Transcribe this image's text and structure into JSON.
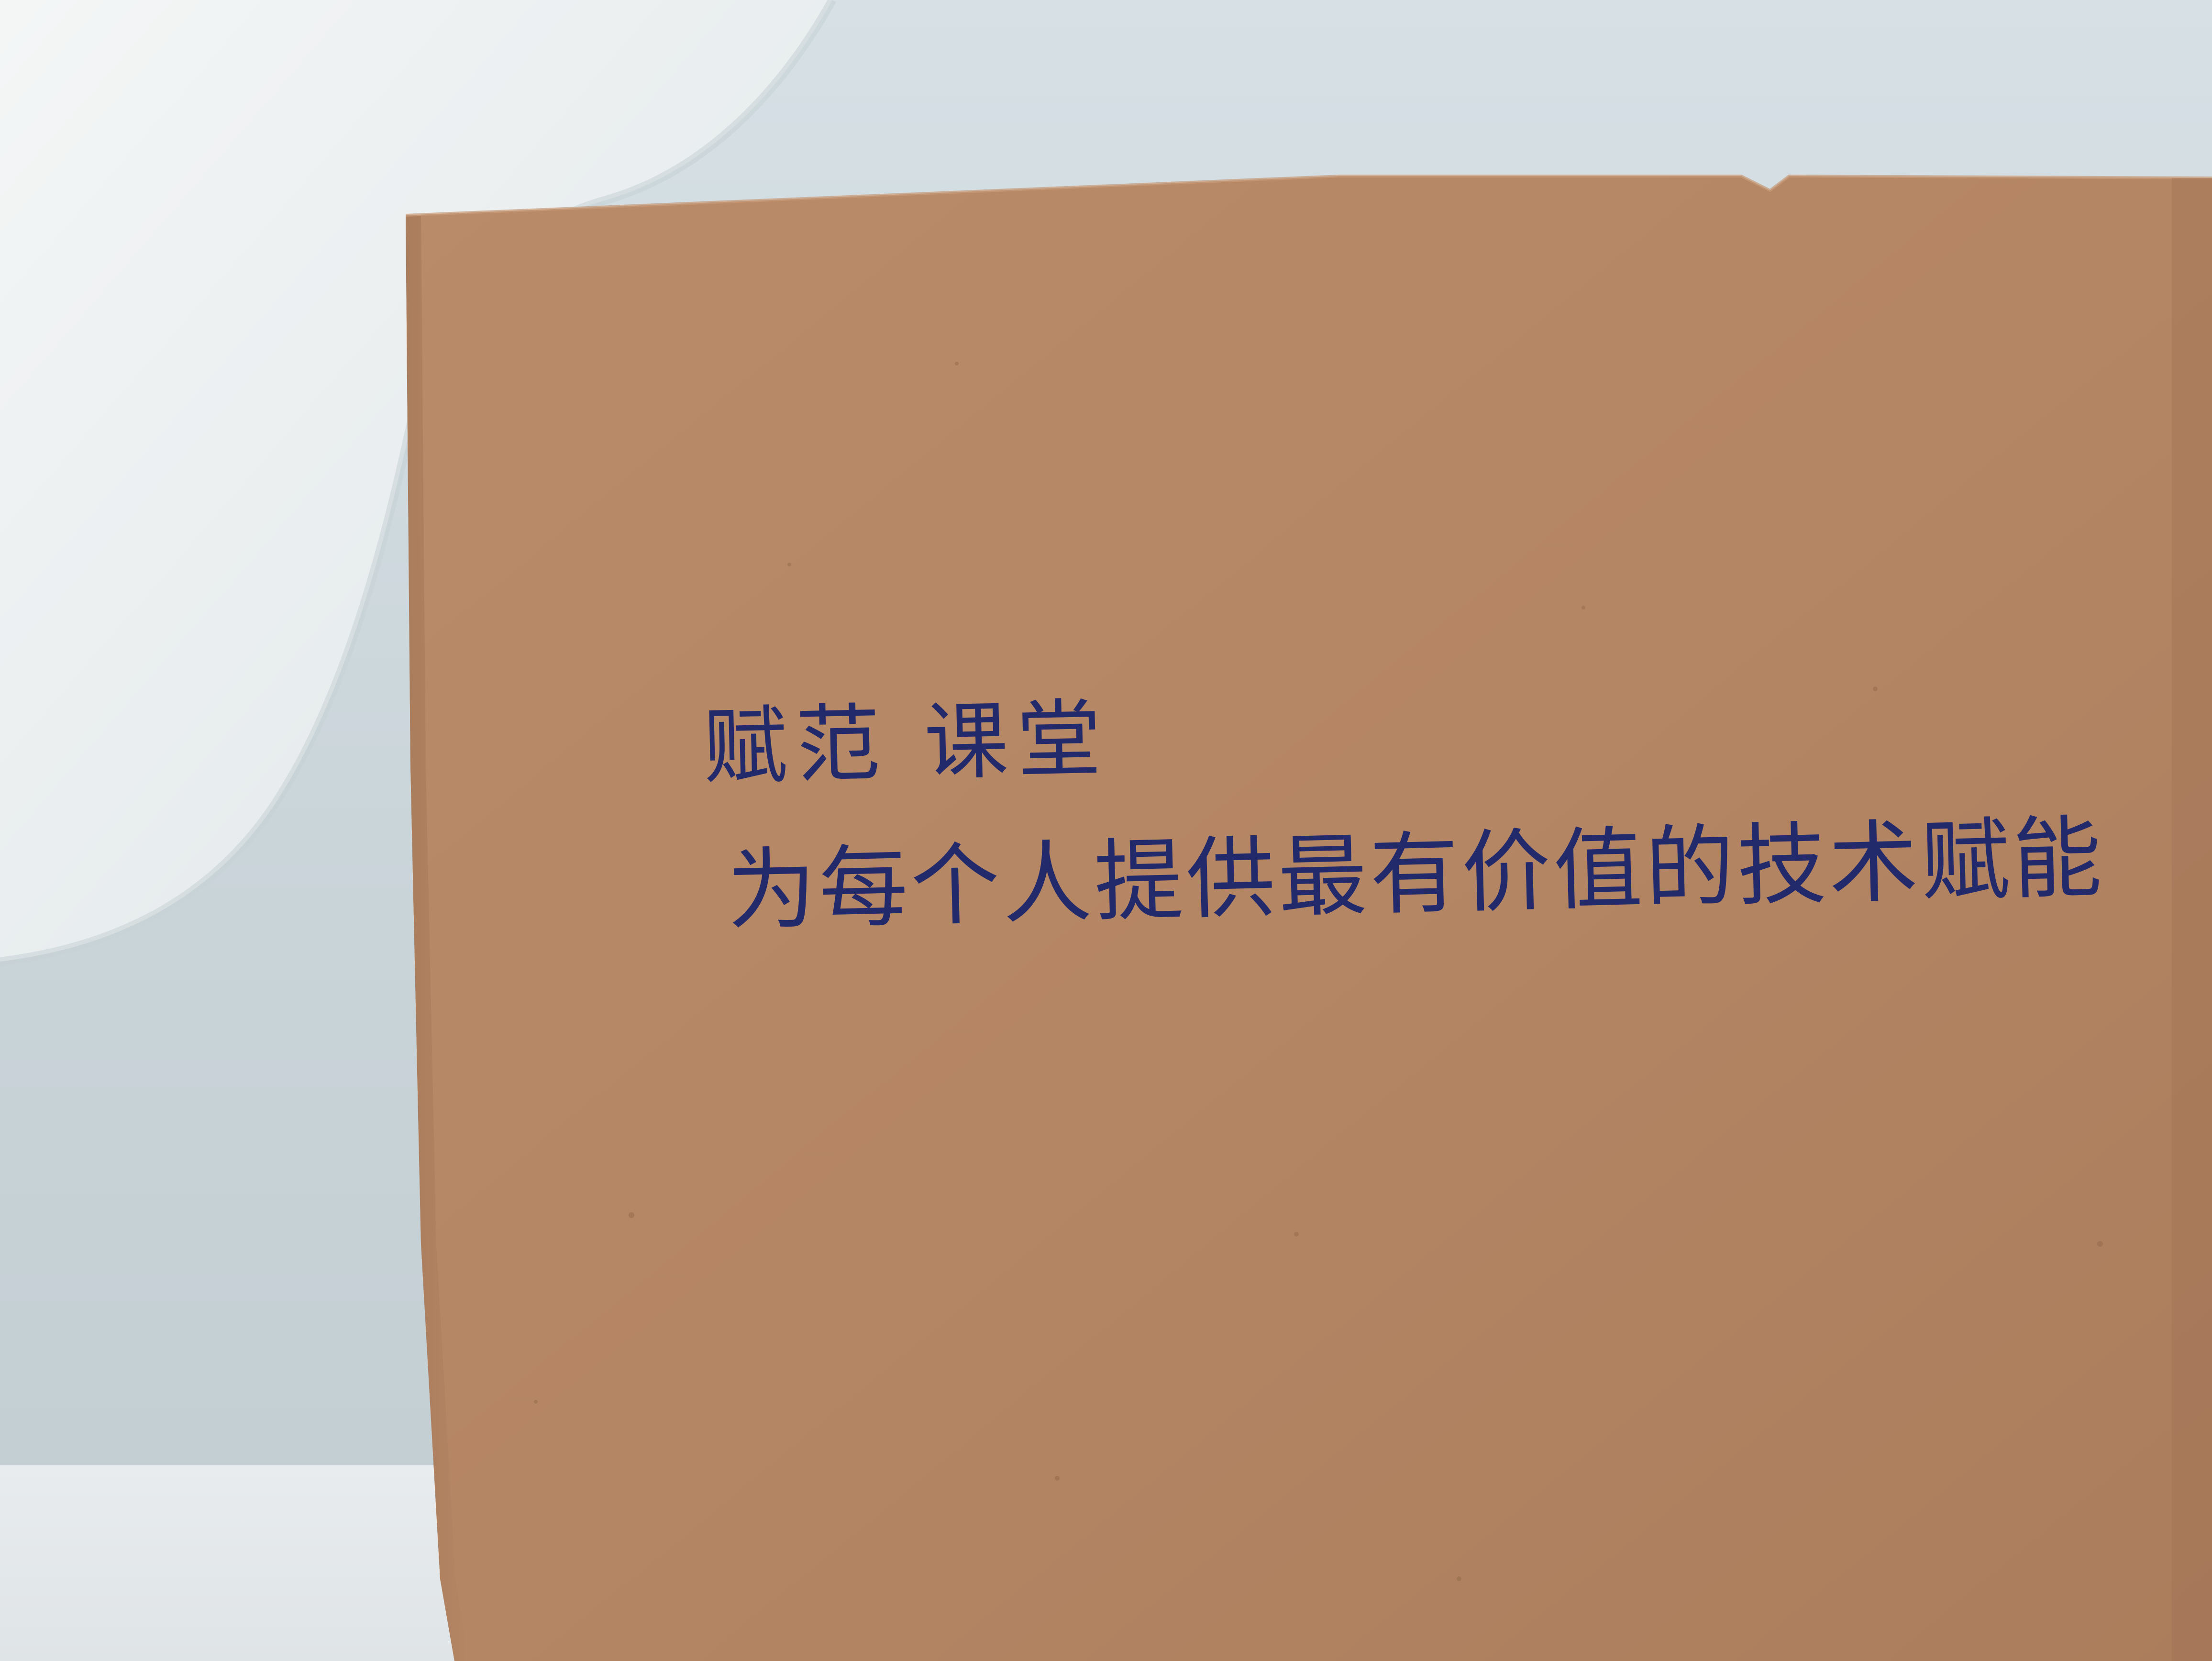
{
  "photo": {
    "subject": "handwritten note on kraft paper",
    "handwriting": {
      "line_1": "赋范 课堂",
      "line_2": "为每个人提供最有价值的技术赋能"
    }
  },
  "colors": {
    "ink": "#232a6b",
    "kraft_paper": "#b58664",
    "backdrop": "#cfd9de",
    "white_object": "#eef1f2"
  }
}
